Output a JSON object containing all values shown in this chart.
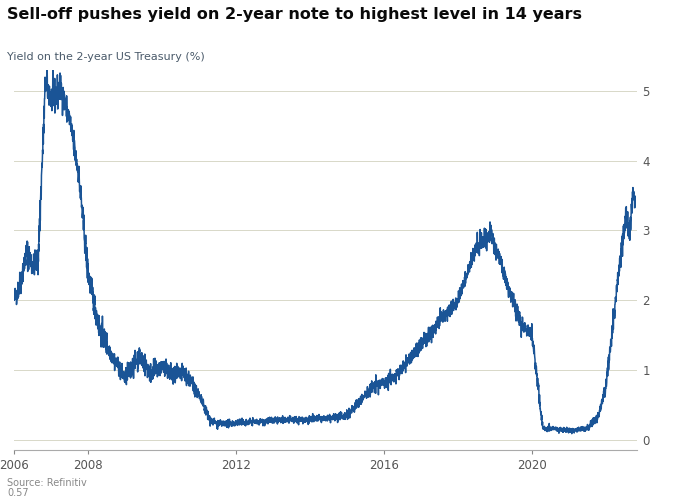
{
  "title": "Sell-off pushes yield on 2-year note to highest level in 14 years",
  "subtitle": "Yield on the 2-year US Treasury (%)",
  "source_line1": "Source: Refinitiv",
  "source_line2": "0.57",
  "line_color": "#1a5496",
  "background_color": "#ffffff",
  "grid_color": "#d8d8c8",
  "title_color": "#0a0a0a",
  "subtitle_color": "#4a5a6a",
  "y_ticks": [
    0,
    1,
    2,
    3,
    4,
    5
  ],
  "ylim": [
    -0.15,
    5.3
  ],
  "year_start": 2006.0,
  "year_end": 2022.85
}
